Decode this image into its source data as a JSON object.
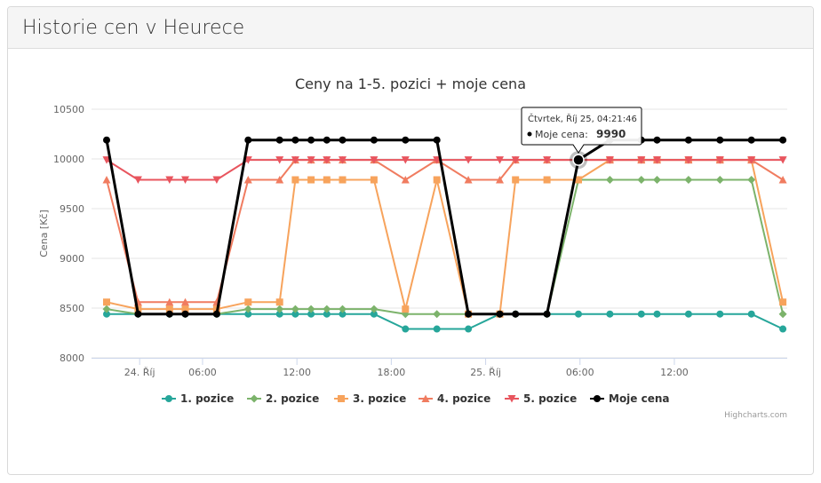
{
  "panel": {
    "title": "Historie cen v Heurece"
  },
  "chart_data": {
    "type": "line",
    "title": "Ceny na 1-5. pozici + moje cena",
    "ylabel": "Cena [Kč]",
    "xlabel": "",
    "ylim": [
      8000,
      10500
    ],
    "yticks": [
      8000,
      8500,
      9000,
      9500,
      10000,
      10500
    ],
    "xtick_labels": [
      {
        "t": 2.1,
        "label": "24. Říj"
      },
      {
        "t": 6.1,
        "label": "06:00"
      },
      {
        "t": 12.1,
        "label": "12:00"
      },
      {
        "t": 18.1,
        "label": "18:00"
      },
      {
        "t": 24.1,
        "label": "25. Říj"
      },
      {
        "t": 30.1,
        "label": "06:00"
      },
      {
        "t": 36.1,
        "label": "12:00"
      }
    ],
    "x_hours_since_start": [
      0,
      2,
      4,
      5,
      7,
      9,
      11,
      12,
      13,
      14,
      15,
      17,
      19,
      21,
      23,
      25,
      26,
      28,
      30,
      32,
      34,
      35,
      37,
      39,
      41,
      43
    ],
    "grid": true,
    "legend_position": "bottom",
    "series": [
      {
        "name": "1. pozice",
        "color": "#26a69a",
        "marker": "circle",
        "values": [
          8440,
          8440,
          8440,
          8440,
          8440,
          8440,
          8440,
          8440,
          8440,
          8440,
          8440,
          8440,
          8290,
          8290,
          8290,
          8440,
          8440,
          8440,
          8440,
          8440,
          8440,
          8440,
          8440,
          8440,
          8440,
          8290
        ]
      },
      {
        "name": "2. pozice",
        "color": "#7cb36b",
        "marker": "diamond",
        "values": [
          8490,
          8440,
          8440,
          8440,
          8440,
          8490,
          8490,
          8490,
          8490,
          8490,
          8490,
          8490,
          8440,
          8440,
          8440,
          8440,
          8440,
          8440,
          9790,
          9790,
          9790,
          9790,
          9790,
          9790,
          9790,
          8440
        ]
      },
      {
        "name": "3. pozice",
        "color": "#f7a35c",
        "marker": "square",
        "values": [
          8560,
          8490,
          8490,
          8490,
          8490,
          8560,
          8560,
          9790,
          9790,
          9790,
          9790,
          9790,
          8490,
          9790,
          8440,
          8440,
          9790,
          9790,
          9790,
          9990,
          9990,
          9990,
          9990,
          9990,
          9990,
          8560
        ]
      },
      {
        "name": "4. pozice",
        "color": "#f07c60",
        "marker": "triangle",
        "values": [
          9790,
          8560,
          8560,
          8560,
          8560,
          9790,
          9790,
          9990,
          9990,
          9990,
          9990,
          9990,
          9790,
          9990,
          9790,
          9790,
          9990,
          9990,
          9990,
          9990,
          9990,
          9990,
          9990,
          9990,
          9990,
          9790
        ]
      },
      {
        "name": "5. pozice",
        "color": "#e8555e",
        "marker": "triangle-down",
        "values": [
          9990,
          9790,
          9790,
          9790,
          9790,
          9990,
          9990,
          9990,
          9990,
          9990,
          9990,
          9990,
          9990,
          9990,
          9990,
          9990,
          9990,
          9990,
          9990,
          9990,
          9990,
          9990,
          9990,
          9990,
          9990,
          9990
        ]
      },
      {
        "name": "Moje cena",
        "color": "#000000",
        "marker": "circle",
        "values": [
          10190,
          8440,
          8440,
          8440,
          8440,
          10190,
          10190,
          10190,
          10190,
          10190,
          10190,
          10190,
          10190,
          10190,
          8440,
          8440,
          8440,
          8440,
          9990,
          10190,
          10190,
          10190,
          10190,
          10190,
          10190,
          10190
        ]
      }
    ],
    "tooltip": {
      "header": "Čtvrtek, Říj 25, 04:21:46",
      "series_label": "Moje cena:",
      "value": "9990",
      "point_index": 18
    },
    "credits": "Highcharts.com"
  }
}
